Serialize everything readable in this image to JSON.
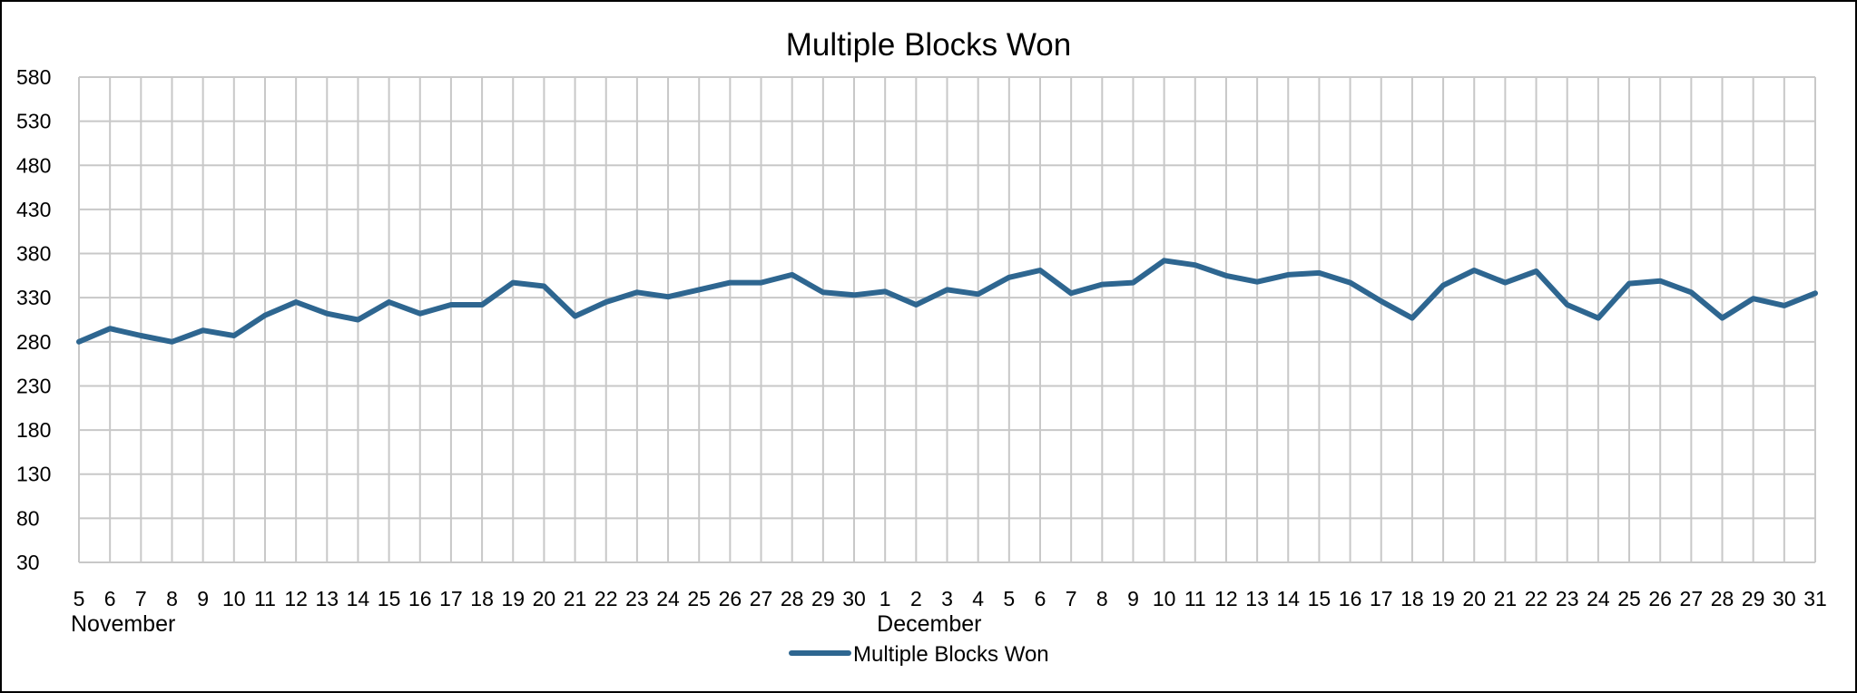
{
  "chart_data": {
    "type": "line",
    "title": "Multiple Blocks Won",
    "xlabel": "",
    "ylabel": "",
    "ylim": [
      30,
      580
    ],
    "yticks": [
      30,
      80,
      130,
      180,
      230,
      280,
      330,
      380,
      430,
      480,
      530,
      580
    ],
    "grid": true,
    "legend_position": "bottom",
    "x": [
      "5",
      "6",
      "7",
      "8",
      "9",
      "10",
      "11",
      "12",
      "13",
      "14",
      "15",
      "16",
      "17",
      "18",
      "19",
      "20",
      "21",
      "22",
      "23",
      "24",
      "25",
      "26",
      "27",
      "28",
      "29",
      "30",
      "1",
      "2",
      "3",
      "4",
      "5",
      "6",
      "7",
      "8",
      "9",
      "10",
      "11",
      "12",
      "13",
      "14",
      "15",
      "16",
      "17",
      "18",
      "19",
      "20",
      "21",
      "22",
      "23",
      "24",
      "25",
      "26",
      "27",
      "28",
      "29",
      "30",
      "31"
    ],
    "x_groups": [
      {
        "label": "November",
        "start_index": 0
      },
      {
        "label": "December",
        "start_index": 26
      }
    ],
    "series": [
      {
        "name": "Multiple Blocks Won",
        "color": "#2e6690",
        "values": [
          280,
          295,
          287,
          280,
          293,
          287,
          310,
          325,
          312,
          305,
          325,
          312,
          322,
          322,
          347,
          343,
          309,
          325,
          336,
          331,
          339,
          347,
          347,
          356,
          336,
          333,
          337,
          322,
          339,
          334,
          353,
          361,
          335,
          345,
          347,
          372,
          367,
          355,
          348,
          356,
          358,
          347,
          326,
          307,
          344,
          361,
          347,
          360,
          322,
          307,
          346,
          349,
          336,
          307,
          329,
          321,
          335
        ]
      }
    ]
  }
}
